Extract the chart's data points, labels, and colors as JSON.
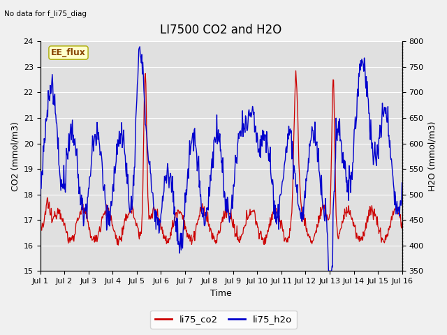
{
  "title": "LI7500 CO2 and H2O",
  "top_left_text": "No data for f_li75_diag",
  "xlabel": "Time",
  "ylabel_left": "CO2 (mmol/m3)",
  "ylabel_right": "H2O (mmol/m3)",
  "ylim_left": [
    15.0,
    24.0
  ],
  "ylim_right": [
    350,
    800
  ],
  "yticks_left": [
    15.0,
    16.0,
    17.0,
    18.0,
    19.0,
    20.0,
    21.0,
    22.0,
    23.0,
    24.0
  ],
  "yticks_right": [
    350,
    400,
    450,
    500,
    550,
    600,
    650,
    700,
    750,
    800
  ],
  "xtick_labels": [
    "Jul 1",
    "Jul 2",
    "Jul 3",
    "Jul 4",
    "Jul 5",
    "Jul 6",
    "Jul 7",
    "Jul 8",
    "Jul 9",
    "Jul 10",
    "Jul 11",
    "Jul 12",
    "Jul 13",
    "Jul 14",
    "Jul 15",
    "Jul 16"
  ],
  "legend_labels": [
    "li75_co2",
    "li75_h2o"
  ],
  "legend_colors": [
    "#cc0000",
    "#0000cc"
  ],
  "annotation_text": "EE_flux",
  "annotation_box_color": "#ffffcc",
  "annotation_box_edge": "#aaaa00",
  "figure_bg_color": "#f0f0f0",
  "plot_bg_color": "#e0e0e0",
  "co2_color": "#cc0000",
  "h2o_color": "#0000cc",
  "grid_color": "#ffffff",
  "title_fontsize": 12,
  "label_fontsize": 9,
  "tick_fontsize": 8,
  "annotation_fontsize": 9
}
